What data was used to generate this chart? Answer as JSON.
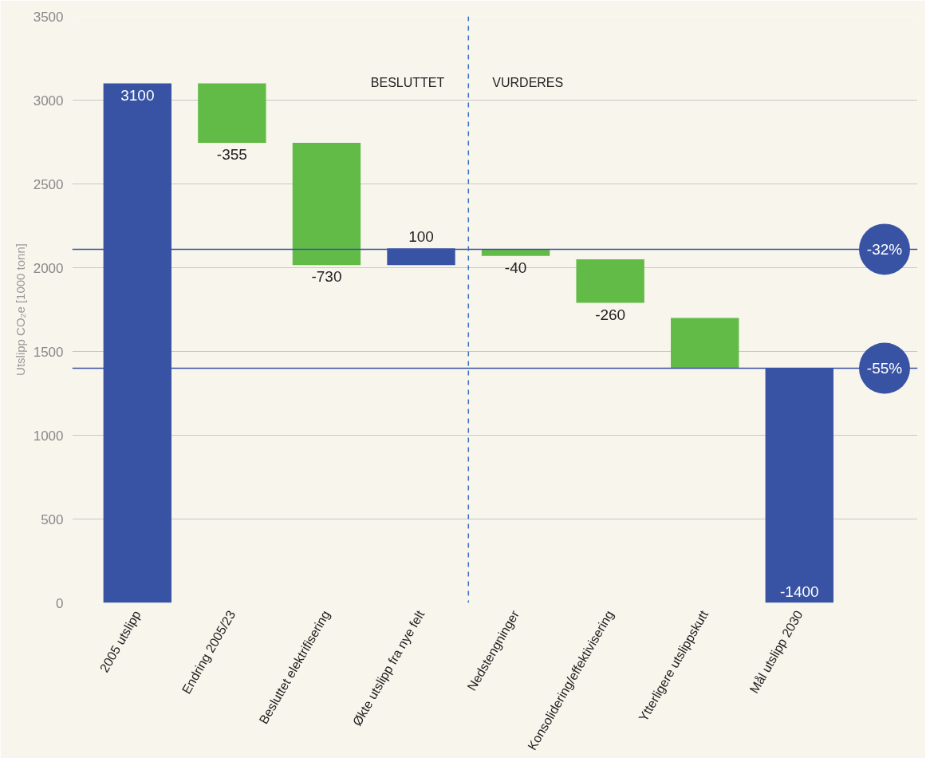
{
  "chart_data": {
    "type": "bar",
    "ylabel": "Utslipp CO₂e [1000 tonn]",
    "categories": [
      "2005 utslipp",
      "Endring 2005/23",
      "Besluttet elektrifisering",
      "Økte utslipp fra nye felt",
      "Nedstengninger",
      "Konsolidering/effektivisering",
      "Ytterligere utslippskutt",
      "Mål utslipp 2030"
    ],
    "values": [
      3100,
      -355,
      -730,
      100,
      -40,
      -260,
      -300,
      1400
    ],
    "base": [
      0,
      3100,
      2745,
      2015,
      2110,
      2050,
      1700,
      0
    ],
    "colors": [
      "#3953a4",
      "#62bb46",
      "#62bb46",
      "#3953a4",
      "#62bb46",
      "#62bb46",
      "#62bb46",
      "#3953a4"
    ],
    "value_labels": [
      "3100",
      "-355",
      "-730",
      "100",
      "-40",
      "-260",
      null,
      null
    ],
    "ylim": [
      0,
      3500
    ],
    "yticks": [
      0,
      500,
      1000,
      1500,
      2000,
      2500,
      3000,
      3500
    ],
    "grid": "y",
    "ref_lines": [
      {
        "axis": "y",
        "value": 2110,
        "color": "#3953a4"
      },
      {
        "axis": "y",
        "value": 1400,
        "color": "#3953a4"
      },
      {
        "axis": "x",
        "value": "Nedstengninger",
        "color": "#3a6fc4",
        "line_style": "dashed"
      }
    ],
    "annotations": [
      "BESLUTTET",
      "VURDERES",
      {
        "text": "-32%",
        "y": 2110
      },
      {
        "text": "-55%",
        "y": 1400
      },
      {
        "text": "-1400",
        "x": "Mål utslipp 2030",
        "y": 0
      }
    ]
  }
}
